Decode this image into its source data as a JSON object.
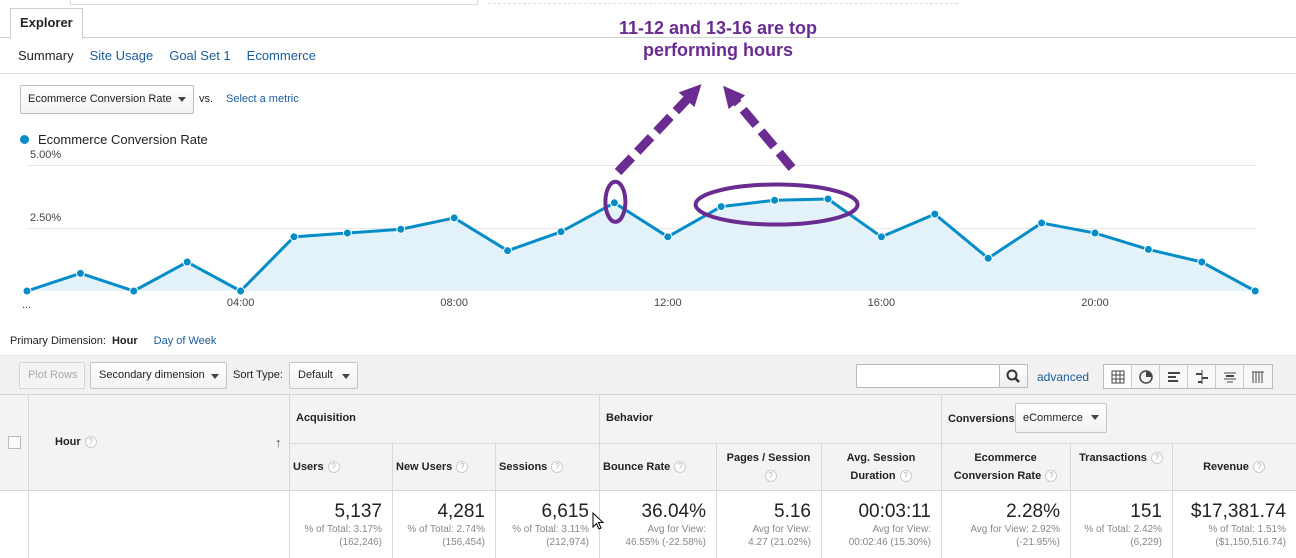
{
  "tabs": {
    "explorer": "Explorer"
  },
  "subtabs": [
    "Summary",
    "Site Usage",
    "Goal Set 1",
    "Ecommerce"
  ],
  "metric_selector": {
    "selected": "Ecommerce Conversion Rate",
    "vs": "vs.",
    "select_metric": "Select a metric"
  },
  "legend": {
    "label": "Ecommerce Conversion Rate",
    "color": "#058dc7"
  },
  "annotation": {
    "line1": "11-12 and 13-16 are top",
    "line2": "performing hours",
    "color": "#6b2c91"
  },
  "chart_data": {
    "type": "area",
    "x": [
      "00",
      "01",
      "02",
      "03",
      "04",
      "05",
      "06",
      "07",
      "08",
      "09",
      "10",
      "11",
      "12",
      "13",
      "14",
      "15",
      "16",
      "17",
      "18",
      "19",
      "20",
      "21",
      "22",
      "23"
    ],
    "series": [
      {
        "name": "Ecommerce Conversion Rate",
        "values": [
          0.0,
          0.7,
          0.0,
          1.15,
          0.0,
          2.15,
          2.3,
          2.45,
          2.9,
          1.6,
          2.35,
          3.5,
          2.15,
          3.35,
          3.6,
          3.65,
          2.15,
          3.05,
          1.3,
          2.7,
          2.3,
          1.65,
          1.15,
          0.0
        ]
      }
    ],
    "y_ticks": [
      "5.00%",
      "2.50%"
    ],
    "ylim": [
      0,
      5
    ],
    "x_tick_labels": [
      {
        "x": 4,
        "label": "04:00"
      },
      {
        "x": 8,
        "label": "08:00"
      },
      {
        "x": 12,
        "label": "12:00"
      },
      {
        "x": 16,
        "label": "16:00"
      },
      {
        "x": 20,
        "label": "20:00"
      }
    ],
    "x_first_label": "...",
    "grid": true,
    "line_color": "#058dc7",
    "fill_color": "#e3f1f9"
  },
  "primary_dimension": {
    "label": "Primary Dimension:",
    "active": "Hour",
    "other": "Day of Week"
  },
  "toolbar": {
    "plot_rows": "Plot Rows",
    "secondary_dimension": "Secondary dimension",
    "sort_type_label": "Sort Type:",
    "sort_type_value": "Default",
    "advanced": "advanced"
  },
  "table": {
    "hour_header": "Hour",
    "groups": {
      "acquisition": "Acquisition",
      "behavior": "Behavior",
      "conversions": "Conversions",
      "conversions_select": "eCommerce"
    },
    "columns": [
      "Users",
      "New Users",
      "Sessions",
      "Bounce Rate",
      "Pages / Session",
      "Avg. Session Duration",
      "Ecommerce Conversion Rate",
      "Transactions",
      "Revenue"
    ],
    "totals": [
      {
        "value": "5,137",
        "sub1": "% of Total: 3.17%",
        "sub2": "(162,246)"
      },
      {
        "value": "4,281",
        "sub1": "% of Total: 2.74%",
        "sub2": "(156,454)"
      },
      {
        "value": "6,615",
        "sub1": "% of Total: 3.11%",
        "sub2": "(212,974)"
      },
      {
        "value": "36.04%",
        "sub1": "Avg for View:",
        "sub2": "46.55% (-22.58%)"
      },
      {
        "value": "5.16",
        "sub1": "Avg for View:",
        "sub2": "4.27 (21.02%)"
      },
      {
        "value": "00:03:11",
        "sub1": "Avg for View:",
        "sub2": "00:02:46 (15.30%)"
      },
      {
        "value": "2.28%",
        "sub1": "Avg for View: 2.92%",
        "sub2": "(-21.95%)"
      },
      {
        "value": "151",
        "sub1": "% of Total: 2.42%",
        "sub2": "(6,229)"
      },
      {
        "value": "$17,381.74",
        "sub1": "% of Total: 1.51%",
        "sub2": "($1,150,516.74)"
      }
    ]
  }
}
